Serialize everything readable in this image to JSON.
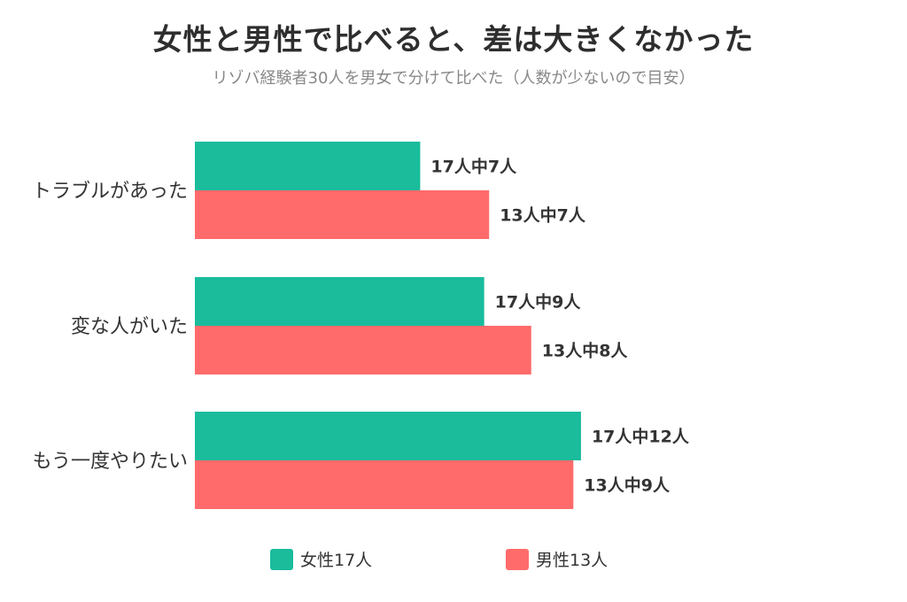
{
  "title": "女性と男性で比べると、差は大きくなかった",
  "subtitle": "リゾバ経験者30人を男女で分けて比べた（人数が少ないので目安）",
  "colors": {
    "female": "#1ABC9C",
    "male": "#FF6B6B"
  },
  "legend": [
    {
      "label": "女性17人",
      "color": "#1ABC9C"
    },
    {
      "label": "男性13人",
      "color": "#FF6B6B"
    }
  ],
  "chart_data": {
    "type": "bar",
    "orientation": "horizontal",
    "categories": [
      "トラブルがあった",
      "変な人がいた",
      "もう一度やりたい"
    ],
    "series": [
      {
        "name": "女性17人",
        "totals": [
          17,
          17,
          17
        ],
        "counts": [
          7,
          9,
          12
        ],
        "values": [
          41.2,
          52.9,
          70.6
        ],
        "labels": [
          "17人中7人",
          "17人中9人",
          "17人中12人"
        ]
      },
      {
        "name": "男性13人",
        "totals": [
          13,
          13,
          13
        ],
        "counts": [
          7,
          8,
          9
        ],
        "values": [
          53.8,
          61.5,
          69.2
        ],
        "labels": [
          "13人中7人",
          "13人中8人",
          "13人中9人"
        ]
      }
    ],
    "legend_position": "bottom",
    "grid": false
  }
}
